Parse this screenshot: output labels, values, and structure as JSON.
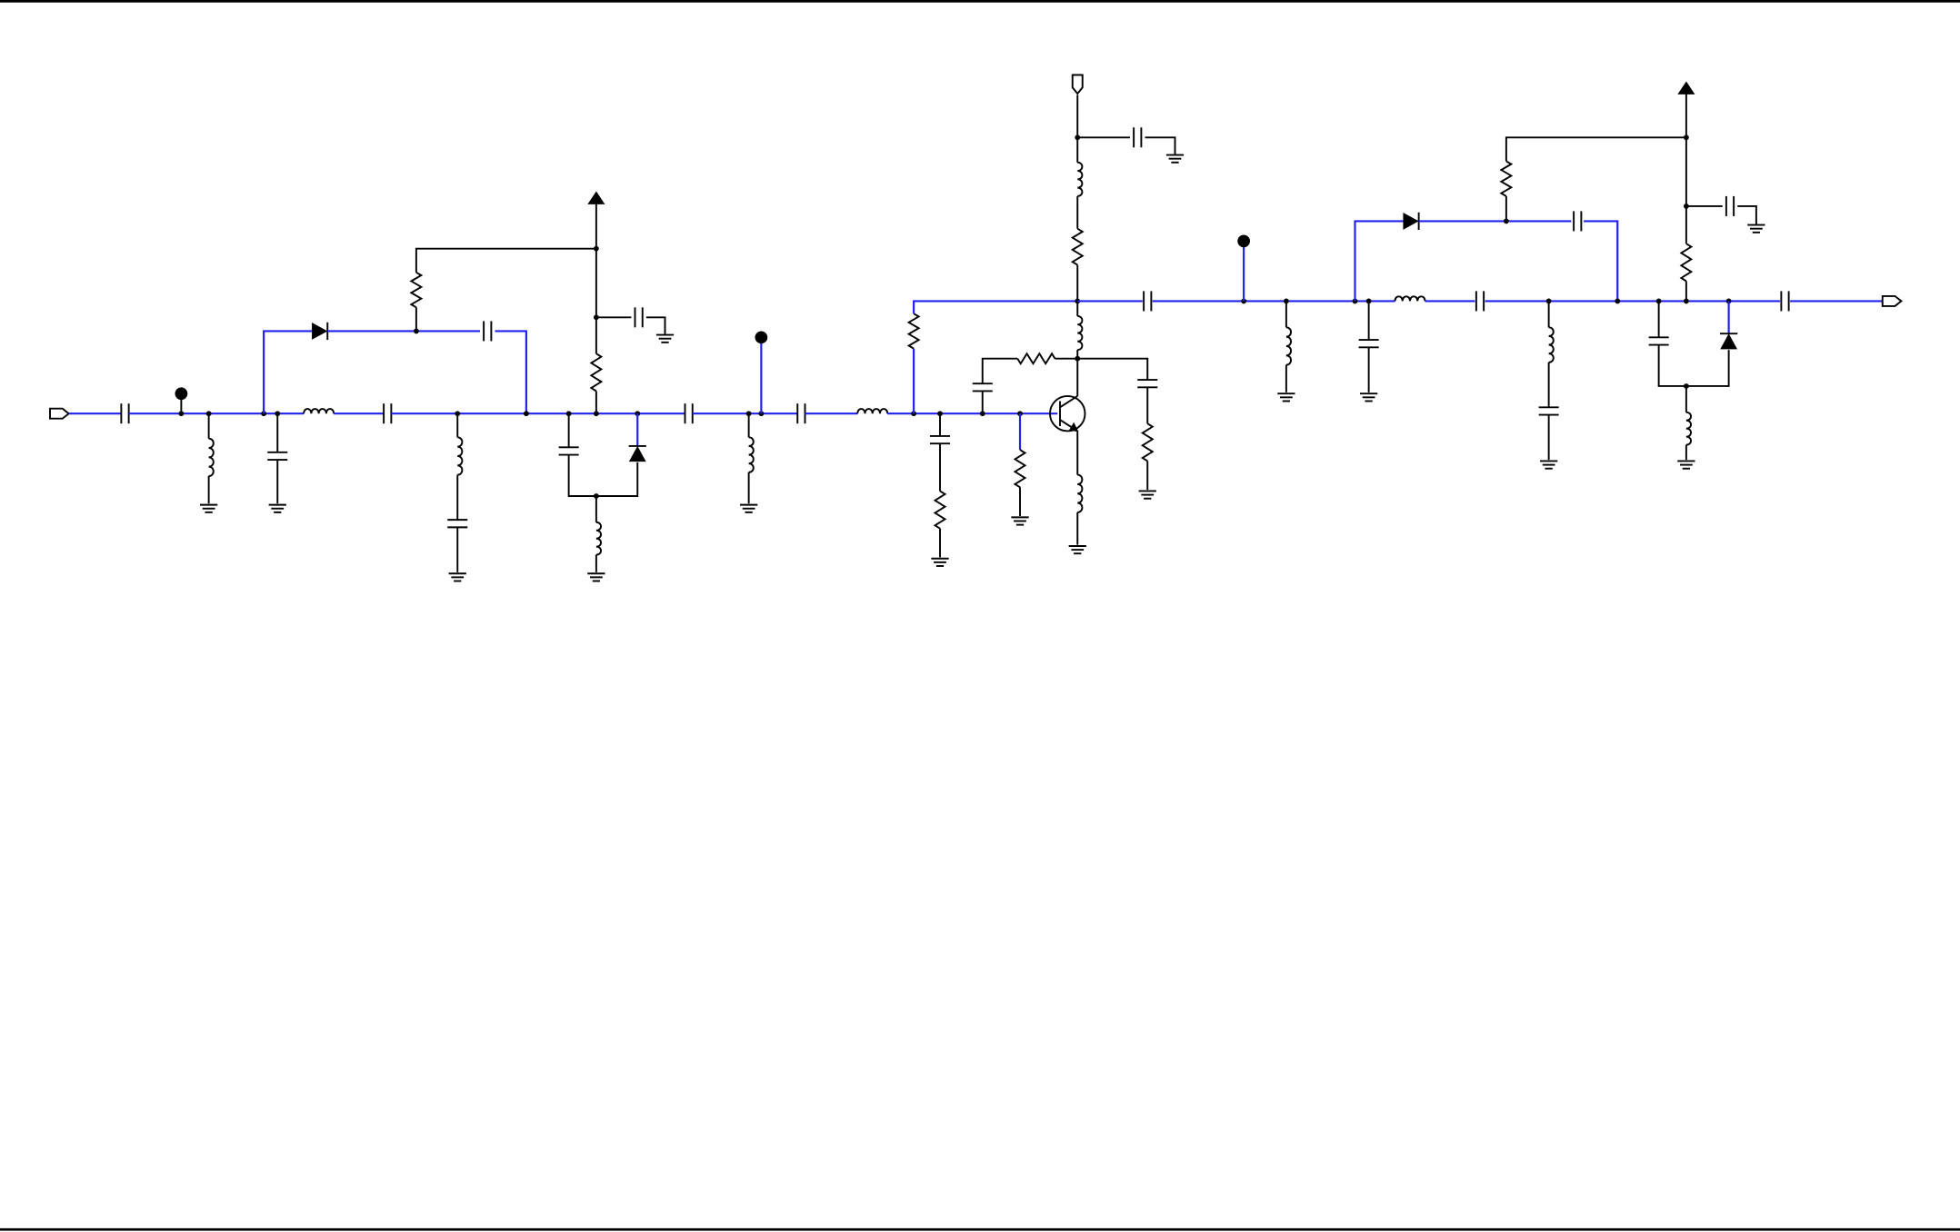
{
  "schematic": {
    "wire_color": "#000000",
    "signal_wire_color": "#2222ee",
    "background": "#ffffff",
    "symbols": {
      "port": "port-icon",
      "capacitor": "capacitor-icon",
      "inductor": "inductor-icon",
      "resistor": "resistor-icon",
      "diode": "diode-icon",
      "ground": "ground-icon",
      "supply": "supply-arrow-icon",
      "probe": "probe-dot-icon",
      "transistor": "npn-transistor-icon"
    }
  }
}
